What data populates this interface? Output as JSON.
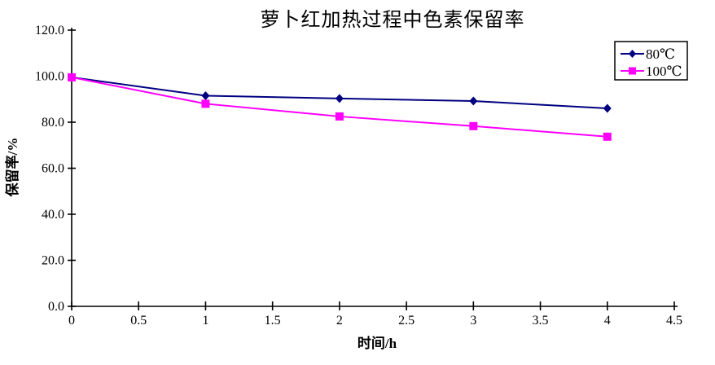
{
  "chart_data": {
    "type": "line",
    "title": "萝卜红加热过程中色素保留率",
    "xlabel": "时间/h",
    "ylabel": "保留率/%",
    "x": [
      0,
      1,
      2,
      3,
      4
    ],
    "series": [
      {
        "name": "80℃",
        "color": "#000080",
        "marker": "diamond",
        "values": [
          99.5,
          91.5,
          90.3,
          89.2,
          86.0
        ]
      },
      {
        "name": "100℃",
        "color": "#ff00ff",
        "marker": "square",
        "values": [
          99.5,
          88.0,
          82.5,
          78.3,
          73.7
        ]
      }
    ],
    "xlim": [
      0,
      4.5
    ],
    "ylim": [
      0,
      120
    ],
    "xticks": [
      0,
      0.5,
      1,
      1.5,
      2,
      2.5,
      3,
      3.5,
      4,
      4.5
    ],
    "xtick_labels": [
      "0",
      "0.5",
      "1",
      "1.5",
      "2",
      "2.5",
      "3",
      "3.5",
      "4",
      "4.5"
    ],
    "yticks": [
      0,
      20,
      40,
      60,
      80,
      100,
      120
    ],
    "ytick_labels": [
      "0.0",
      "20.0",
      "40.0",
      "60.0",
      "80.0",
      "100.0",
      "120.0"
    ],
    "grid": false,
    "legend_position": "top-right",
    "axis_color": "#000000",
    "background": "#ffffff"
  }
}
